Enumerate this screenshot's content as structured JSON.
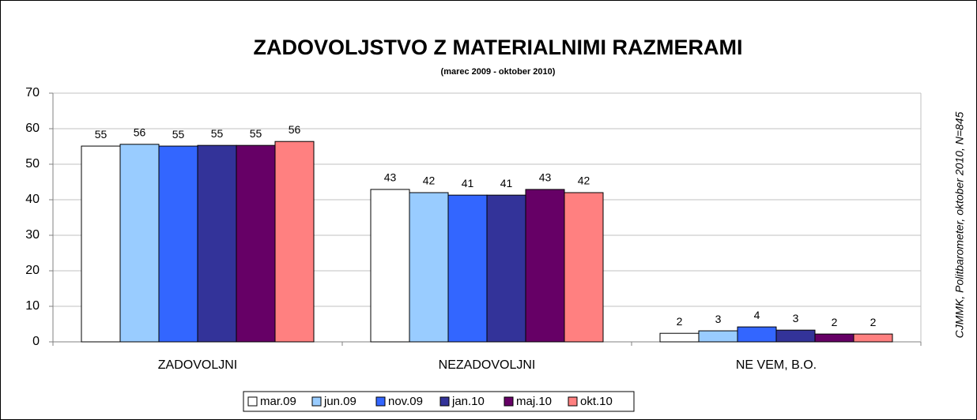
{
  "chart_data": {
    "type": "bar",
    "title": "ZADOVOLJSTVO Z MATERIALNIMI RAZMERAMI",
    "subtitle": "(marec 2009 - oktober 2010)",
    "source": "CJMMK, Politbarometer, oktober 2010, N=845",
    "categories": [
      "ZADOVOLJNI",
      "NEZADOVOLJNI",
      "NE VEM, B.O."
    ],
    "series": [
      {
        "name": "mar.09",
        "color": "#ffffff",
        "values": [
          55.1,
          42.9,
          2.4
        ],
        "value_labels": [
          "55",
          "43",
          "2"
        ]
      },
      {
        "name": "jun.09",
        "color": "#99ccff",
        "values": [
          55.6,
          42.0,
          3.1
        ],
        "value_labels": [
          "56",
          "42",
          "3"
        ]
      },
      {
        "name": "nov.09",
        "color": "#3366ff",
        "values": [
          55.1,
          41.3,
          4.2
        ],
        "value_labels": [
          "55",
          "41",
          "4"
        ]
      },
      {
        "name": "jan.10",
        "color": "#333399",
        "values": [
          55.3,
          41.3,
          3.3
        ],
        "value_labels": [
          "55",
          "41",
          "3"
        ]
      },
      {
        "name": "maj.10",
        "color": "#660066",
        "values": [
          55.3,
          42.9,
          2.2
        ],
        "value_labels": [
          "55",
          "43",
          "2"
        ]
      },
      {
        "name": "okt.10",
        "color": "#ff8080",
        "values": [
          56.4,
          42.0,
          2.2
        ],
        "value_labels": [
          "56",
          "42",
          "2"
        ]
      }
    ],
    "ylim": [
      0,
      70
    ],
    "yticks": [
      0,
      10,
      20,
      30,
      40,
      50,
      60,
      70
    ],
    "grid": true,
    "legend": "bottom"
  }
}
